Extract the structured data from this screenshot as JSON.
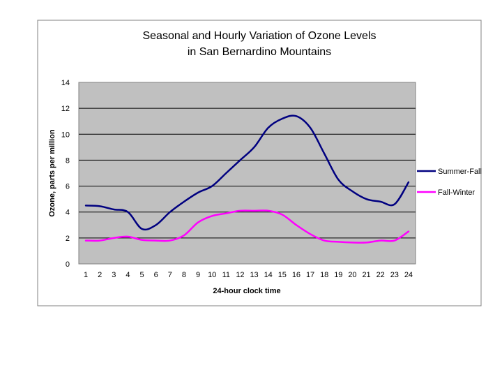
{
  "chart_data": {
    "type": "line",
    "title": [
      "Seasonal and Hourly Variation of Ozone Levels",
      "in San Bernardino Mountains"
    ],
    "xlabel": "24-hour clock time",
    "ylabel": "Ozone, parts per million",
    "categories": [
      "1",
      "2",
      "3",
      "4",
      "5",
      "6",
      "7",
      "8",
      "9",
      "10",
      "11",
      "12",
      "13",
      "14",
      "15",
      "16",
      "17",
      "18",
      "19",
      "20",
      "21",
      "22",
      "23",
      "24"
    ],
    "ylim": [
      0,
      14
    ],
    "yticks": [
      "0",
      "2",
      "4",
      "6",
      "8",
      "10",
      "12",
      "14"
    ],
    "grid": true,
    "legend_position": "right",
    "series": [
      {
        "name": "Summer-Fall",
        "color": "#000080",
        "values": [
          4.5,
          4.45,
          4.2,
          4.0,
          2.7,
          3.0,
          4.0,
          4.8,
          5.5,
          6.0,
          7.0,
          8.0,
          9.0,
          10.5,
          11.2,
          11.4,
          10.5,
          8.5,
          6.5,
          5.6,
          5.0,
          4.8,
          4.6,
          6.3
        ]
      },
      {
        "name": "Fall-Winter",
        "color": "#ff00ff",
        "values": [
          1.8,
          1.8,
          2.0,
          2.1,
          1.85,
          1.8,
          1.8,
          2.2,
          3.2,
          3.7,
          3.9,
          4.1,
          4.1,
          4.1,
          3.8,
          3.0,
          2.3,
          1.8,
          1.7,
          1.65,
          1.65,
          1.8,
          1.8,
          2.5
        ]
      }
    ],
    "colors": {
      "plot_background": "#c0c0c0",
      "frame_border": "#808080",
      "gridline": "#000000"
    }
  }
}
